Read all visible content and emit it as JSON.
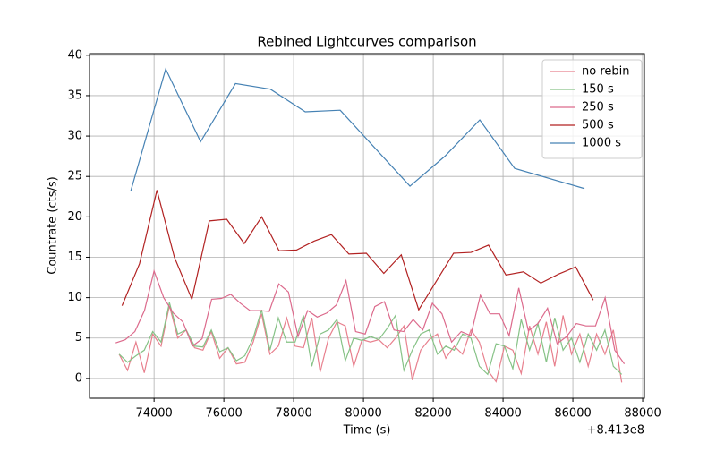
{
  "chart_data": {
    "type": "line",
    "title": "Rebined Lightcurves comparison",
    "x_label": "Time (s)",
    "y_label": "Countrate (cts/s)",
    "x_offset_label": "+8.413e8",
    "xlim": [
      72150,
      88050
    ],
    "ylim": [
      -2.45,
      40.2
    ],
    "xticks": [
      74000,
      76000,
      78000,
      80000,
      82000,
      84000,
      86000,
      88000
    ],
    "yticks": [
      0,
      5,
      10,
      15,
      20,
      25,
      30,
      35,
      40
    ],
    "grid": true,
    "legend": "upper right",
    "series": [
      {
        "name": "no rebin",
        "color": "#e8808e",
        "x": [
          73000,
          73240,
          73480,
          73720,
          73960,
          74200,
          74440,
          74680,
          74920,
          75160,
          75400,
          75640,
          75880,
          76120,
          76360,
          76600,
          76840,
          77080,
          77320,
          77560,
          77800,
          78040,
          78280,
          78520,
          78760,
          79000,
          79240,
          79480,
          79720,
          79960,
          80200,
          80440,
          80680,
          80920,
          81160,
          81400,
          81640,
          81880,
          82120,
          82360,
          82600,
          82840,
          83080,
          83320,
          83560,
          83800,
          84040,
          84280,
          84520,
          84760,
          85000,
          85240,
          85480,
          85720,
          85960,
          86200,
          86440,
          86680,
          86920,
          87160,
          87400
        ],
        "values": [
          3.0,
          1.0,
          4.5,
          0.7,
          5.5,
          4.0,
          9.0,
          5.0,
          6.0,
          3.8,
          3.5,
          5.8,
          2.5,
          3.8,
          1.8,
          2.0,
          4.5,
          8.0,
          3.0,
          4.0,
          7.5,
          4.0,
          3.8,
          7.5,
          0.8,
          5.0,
          7.0,
          6.5,
          1.5,
          4.8,
          4.5,
          4.8,
          3.8,
          5.0,
          6.5,
          -0.2,
          3.5,
          4.8,
          5.5,
          2.5,
          4.0,
          3.0,
          6.0,
          4.5,
          1.0,
          -0.4,
          4.0,
          3.5,
          0.6,
          6.5,
          3.0,
          7.0,
          1.5,
          7.8,
          3.0,
          5.5,
          1.5,
          5.5,
          3.0,
          6.0,
          -0.5
        ]
      },
      {
        "name": "150 s",
        "color": "#86c286",
        "x": [
          73000,
          73240,
          73480,
          73720,
          73960,
          74200,
          74440,
          74680,
          74920,
          75160,
          75400,
          75640,
          75880,
          76120,
          76360,
          76600,
          76840,
          77080,
          77320,
          77560,
          77800,
          78040,
          78280,
          78520,
          78760,
          79000,
          79240,
          79480,
          79720,
          79960,
          80200,
          80440,
          80680,
          80920,
          81160,
          81400,
          81640,
          81880,
          82120,
          82360,
          82600,
          82840,
          83080,
          83320,
          83560,
          83800,
          84040,
          84280,
          84520,
          84760,
          85000,
          85240,
          85480,
          85720,
          85960,
          86200,
          86440,
          86680,
          86920,
          87160,
          87400
        ],
        "values": [
          3.0,
          2.0,
          2.8,
          3.5,
          5.8,
          4.5,
          9.4,
          5.5,
          6.0,
          4.0,
          3.9,
          6.0,
          3.3,
          3.8,
          2.2,
          2.8,
          5.0,
          8.5,
          3.5,
          7.5,
          4.5,
          4.5,
          7.8,
          1.5,
          5.5,
          6.0,
          7.3,
          2.2,
          5.0,
          4.7,
          5.2,
          4.8,
          6.2,
          7.8,
          1.0,
          3.5,
          5.5,
          6.0,
          3.0,
          4.0,
          3.5,
          5.5,
          5.0,
          1.5,
          0.5,
          4.3,
          4.0,
          1.2,
          7.3,
          3.5,
          6.8,
          2.0,
          7.5,
          3.5,
          5.0,
          2.0,
          5.5,
          3.5,
          6.0,
          1.5,
          0.5
        ]
      },
      {
        "name": "250 s",
        "color": "#dc6a8c",
        "x": [
          72900,
          73175,
          73450,
          73725,
          74000,
          74275,
          74550,
          74825,
          75100,
          75375,
          75650,
          75925,
          76200,
          76475,
          76750,
          77025,
          77300,
          77575,
          77850,
          78125,
          78400,
          78675,
          78950,
          79225,
          79500,
          79775,
          80050,
          80325,
          80600,
          80875,
          81150,
          81425,
          81700,
          81975,
          82250,
          82525,
          82800,
          83075,
          83350,
          83625,
          83900,
          84175,
          84450,
          84725,
          85000,
          85275,
          85550,
          85825,
          86100,
          86375,
          86650,
          86925,
          87200,
          87475
        ],
        "values": [
          4.4,
          4.8,
          5.8,
          8.4,
          13.3,
          10.0,
          8.1,
          7.0,
          4.0,
          4.9,
          9.8,
          9.9,
          10.4,
          9.3,
          8.4,
          8.4,
          8.3,
          11.7,
          10.7,
          5.2,
          8.4,
          7.6,
          8.1,
          9.1,
          12.1,
          5.8,
          5.5,
          8.9,
          9.5,
          6.0,
          5.8,
          7.3,
          6.0,
          9.3,
          8.0,
          4.5,
          5.8,
          5.3,
          10.3,
          8.0,
          8.0,
          5.3,
          11.2,
          5.9,
          6.8,
          8.7,
          4.3,
          5.2,
          6.8,
          6.5,
          6.5,
          10.0,
          3.5,
          1.8
        ]
      },
      {
        "name": "500 s",
        "color": "#b22222",
        "x": [
          73083,
          73583,
          74083,
          74583,
          75083,
          75583,
          76083,
          76583,
          77083,
          77583,
          78083,
          78583,
          79083,
          79583,
          80083,
          80583,
          81083,
          81583,
          82083,
          82583,
          83083,
          83583,
          84083,
          84583,
          85083,
          85583,
          86083,
          86583
        ],
        "values": [
          9.0,
          14.2,
          23.3,
          15.0,
          9.8,
          19.5,
          19.7,
          16.7,
          20.0,
          15.8,
          15.9,
          17.0,
          17.8,
          15.4,
          15.5,
          13.0,
          15.3,
          8.5,
          12.0,
          15.5,
          15.6,
          16.5,
          12.8,
          13.2,
          11.8,
          12.9,
          13.8,
          9.7
        ]
      },
      {
        "name": "1000 s",
        "color": "#4682b4",
        "x": [
          73333,
          74333,
          75333,
          76333,
          77333,
          78333,
          79333,
          81333,
          82333,
          83333,
          84333,
          86333
        ],
        "values": [
          23.2,
          38.3,
          29.3,
          36.5,
          35.8,
          33.0,
          33.2,
          23.8,
          27.5,
          32.0,
          26.0,
          23.5
        ]
      }
    ]
  }
}
